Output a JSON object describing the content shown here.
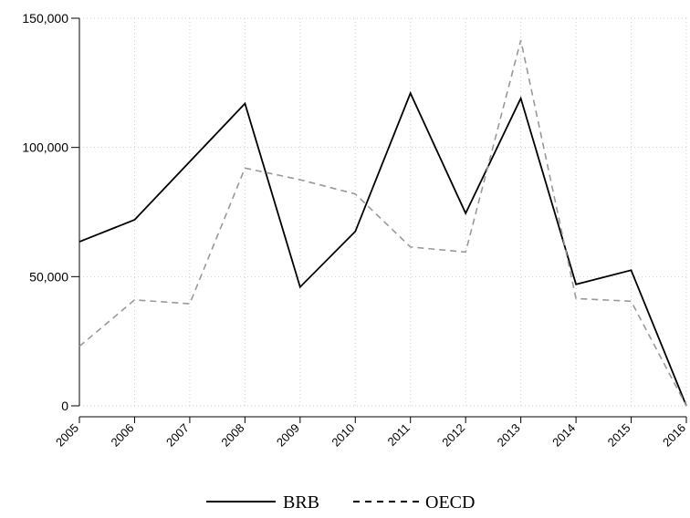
{
  "chart_data": {
    "type": "line",
    "title": "",
    "xlabel": "",
    "ylabel": "",
    "categories": [
      "2005",
      "2006",
      "2007",
      "2008",
      "2009",
      "2010",
      "2011",
      "2012",
      "2013",
      "2014",
      "2015",
      "2016"
    ],
    "ylim": [
      0,
      150000
    ],
    "y_ticks": [
      0,
      50000,
      100000,
      150000
    ],
    "y_tick_labels": [
      "0",
      "50,000",
      "100,000",
      "150,000"
    ],
    "grid": true,
    "legend_position": "bottom",
    "series": [
      {
        "name": "BRB",
        "style": "solid",
        "color": "#000000",
        "values": [
          63500,
          72000,
          94500,
          117000,
          46000,
          67500,
          121000,
          74500,
          119000,
          47000,
          52500,
          0
        ]
      },
      {
        "name": "OECD",
        "style": "dashed",
        "color": "#999999",
        "values": [
          23000,
          41000,
          39500,
          92000,
          87500,
          82000,
          61500,
          59500,
          141500,
          41500,
          40500,
          0
        ]
      }
    ]
  }
}
